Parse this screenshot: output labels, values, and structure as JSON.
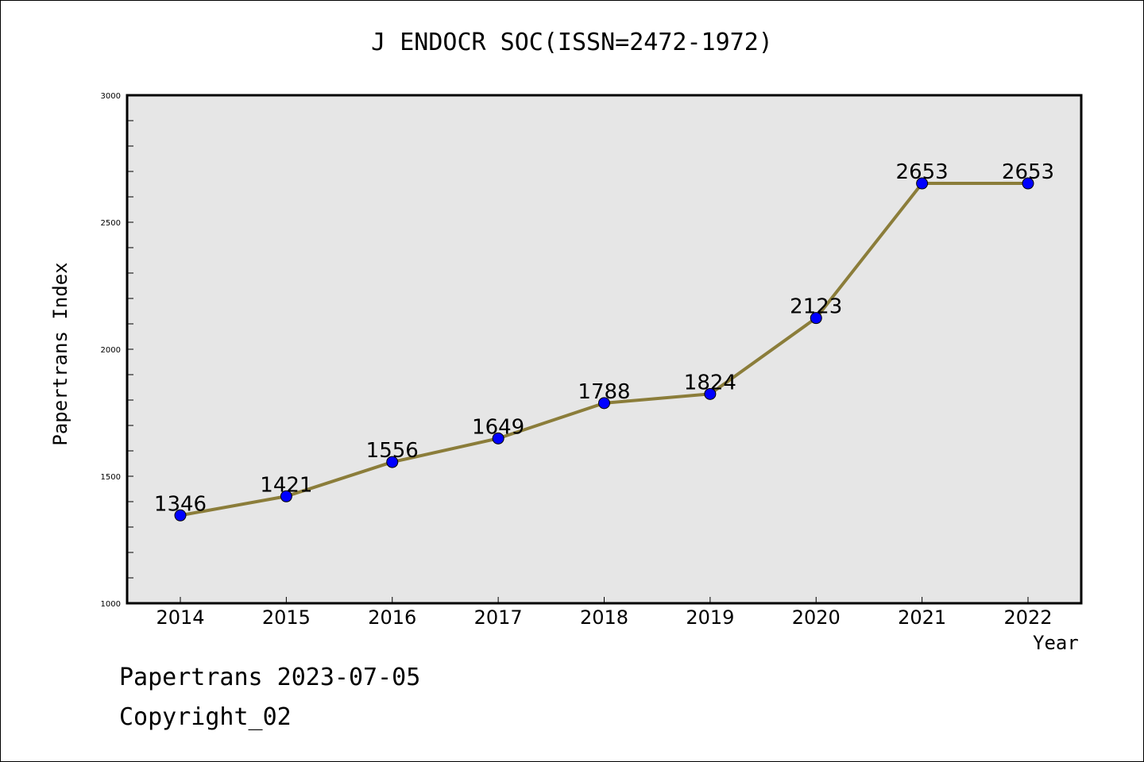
{
  "chart_data": {
    "type": "line",
    "title": "J ENDOCR SOC(ISSN=2472-1972)",
    "xlabel": "Year",
    "ylabel": "Papertrans Index",
    "x": [
      "2014",
      "2015",
      "2016",
      "2017",
      "2018",
      "2019",
      "2020",
      "2021",
      "2022"
    ],
    "series": [
      {
        "values": [
          1346,
          1421,
          1556,
          1649,
          1788,
          1824,
          2123,
          2653,
          2653
        ]
      }
    ],
    "ylim": [
      1000,
      3000
    ],
    "yticks": [
      "1000",
      "1500",
      "2000",
      "2500",
      "3000"
    ],
    "grid": false,
    "colors": {
      "line": "#8b7d3a",
      "marker": "#0000ff",
      "plot_background": "#e6e6e6"
    }
  },
  "footer": {
    "source": "Papertrans 2023-07-05",
    "copyright": "Copyright_02"
  }
}
